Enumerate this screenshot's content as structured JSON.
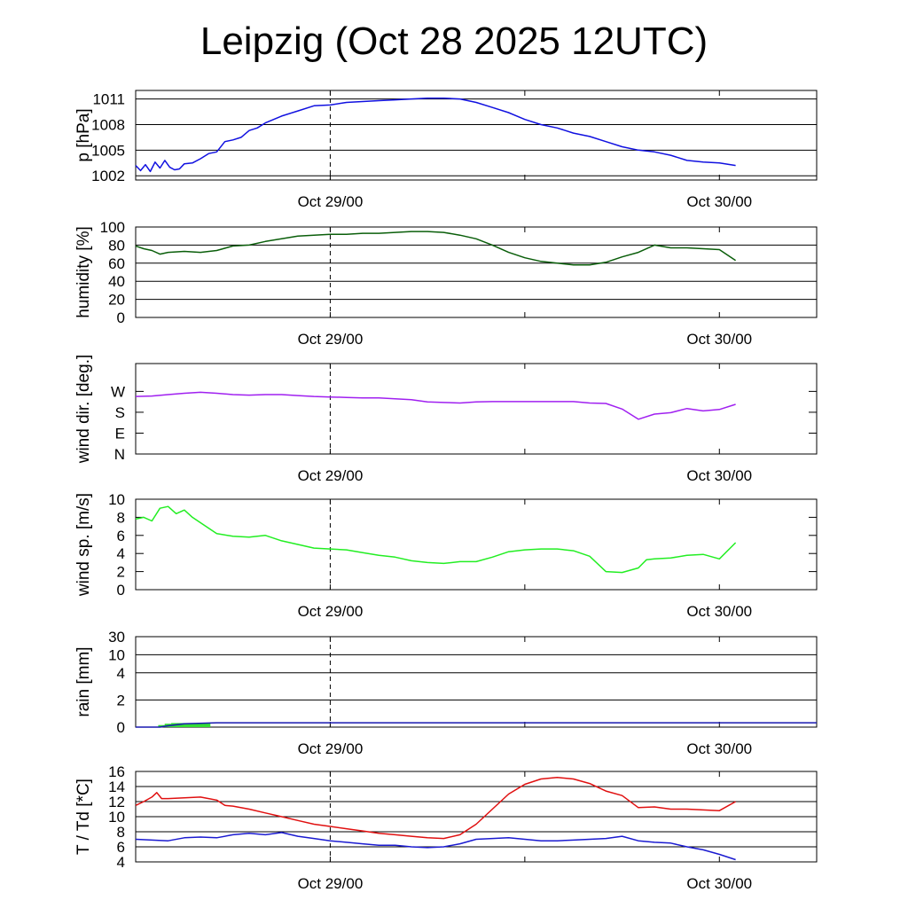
{
  "title": "Leipzig (Oct 28 2025 12UTC)",
  "colors": {
    "pressure": "#1010e0",
    "humidity": "#0a5e0a",
    "wind_dir": "#a020f0",
    "wind_speed": "#22ee22",
    "rain_bar": "#33dd33",
    "rain_line": "#1818b0",
    "temperature": "#e01010",
    "dewpoint": "#1a1ad0",
    "grid": "#000000"
  },
  "chart_data": [
    {
      "type": "line",
      "id": "pressure",
      "ylabel": "p [hPa]",
      "x_range": [
        0,
        42
      ],
      "x_ticks": [
        12,
        36
      ],
      "x_tick_labels": [
        "Oct 29/00",
        "Oct 30/00"
      ],
      "ylim": [
        1001.5,
        1012
      ],
      "yticks": [
        1002,
        1005,
        1008,
        1011
      ],
      "ytick_labels": [
        "1002",
        "1005",
        "1008",
        "1011"
      ],
      "grid": true,
      "series": [
        {
          "name": "pressure",
          "color": "#1010e0",
          "x": [
            0,
            0.3,
            0.6,
            0.9,
            1.2,
            1.5,
            1.8,
            2.1,
            2.4,
            2.7,
            3.0,
            3.5,
            4,
            4.5,
            5,
            5.5,
            6,
            6.5,
            7,
            7.5,
            8,
            9,
            10,
            11,
            12,
            13,
            14,
            15,
            16,
            17,
            18,
            19,
            20,
            21,
            22,
            23,
            24,
            25,
            26,
            27,
            28,
            29,
            30,
            31,
            32,
            33,
            34,
            35,
            36,
            37
          ],
          "y": [
            1003.2,
            1002.6,
            1003.3,
            1002.5,
            1003.6,
            1002.9,
            1003.8,
            1003.0,
            1002.7,
            1002.8,
            1003.4,
            1003.5,
            1004.0,
            1004.6,
            1004.8,
            1006.0,
            1006.2,
            1006.5,
            1007.3,
            1007.6,
            1008.2,
            1009.0,
            1009.6,
            1010.2,
            1010.3,
            1010.6,
            1010.7,
            1010.8,
            1010.9,
            1011.0,
            1011.1,
            1011.1,
            1011.0,
            1010.6,
            1010.0,
            1009.4,
            1008.6,
            1008.0,
            1007.6,
            1007.0,
            1006.6,
            1006.0,
            1005.4,
            1005.0,
            1004.8,
            1004.4,
            1003.8,
            1003.6,
            1003.5,
            1003.2
          ]
        }
      ]
    },
    {
      "type": "line",
      "id": "humidity",
      "ylabel": "humidity [%]",
      "x_range": [
        0,
        42
      ],
      "x_ticks": [
        12,
        36
      ],
      "x_tick_labels": [
        "Oct 29/00",
        "Oct 30/00"
      ],
      "ylim": [
        0,
        100
      ],
      "yticks": [
        0,
        20,
        40,
        60,
        80,
        100
      ],
      "ytick_labels": [
        "0",
        "20",
        "40",
        "60",
        "80",
        "100"
      ],
      "grid": true,
      "series": [
        {
          "name": "humidity",
          "color": "#0a5e0a",
          "x": [
            0,
            0.5,
            1,
            1.5,
            2,
            3,
            4,
            5,
            6,
            7,
            8,
            9,
            10,
            11,
            12,
            13,
            14,
            15,
            16,
            17,
            18,
            19,
            20,
            21,
            22,
            23,
            24,
            25,
            26,
            27,
            28,
            29,
            30,
            31,
            32,
            33,
            34,
            35,
            36,
            37
          ],
          "y": [
            79,
            76,
            74,
            70,
            72,
            73,
            72,
            74,
            79,
            80,
            84,
            87,
            90,
            91,
            92,
            92,
            93,
            93,
            94,
            95,
            95,
            94,
            91,
            87,
            80,
            72,
            66,
            62,
            60,
            58,
            58,
            61,
            67,
            72,
            80,
            77,
            77,
            76,
            75,
            63
          ]
        }
      ]
    },
    {
      "type": "line",
      "id": "wind_direction",
      "ylabel": "wind dir. [deg.]",
      "x_range": [
        0,
        42
      ],
      "x_ticks": [
        12,
        36
      ],
      "x_tick_labels": [
        "Oct 29/00",
        "Oct 30/00"
      ],
      "ylim": [
        0,
        390
      ],
      "yticks": [
        0,
        90,
        180,
        270
      ],
      "ytick_labels": [
        "N",
        "E",
        "S",
        "W"
      ],
      "grid": false,
      "series": [
        {
          "name": "wind direction",
          "color": "#a020f0",
          "x": [
            0,
            1,
            2,
            3,
            4,
            5,
            6,
            7,
            8,
            9,
            10,
            11,
            12,
            13,
            14,
            15,
            16,
            17,
            18,
            19,
            20,
            21,
            22,
            23,
            24,
            25,
            26,
            27,
            28,
            29,
            30,
            31,
            32,
            33,
            34,
            35,
            36,
            37
          ],
          "y": [
            248,
            250,
            256,
            262,
            266,
            262,
            256,
            254,
            256,
            256,
            252,
            248,
            246,
            244,
            242,
            242,
            238,
            234,
            225,
            222,
            220,
            225,
            226,
            226,
            226,
            226,
            226,
            226,
            220,
            218,
            194,
            150,
            172,
            178,
            196,
            186,
            192,
            214
          ]
        }
      ]
    },
    {
      "type": "line",
      "id": "wind_speed",
      "ylabel": "wind sp. [m/s]",
      "x_range": [
        0,
        42
      ],
      "x_ticks": [
        12,
        36
      ],
      "x_tick_labels": [
        "Oct 29/00",
        "Oct 30/00"
      ],
      "ylim": [
        0,
        10
      ],
      "yticks": [
        0,
        2,
        4,
        6,
        8,
        10
      ],
      "ytick_labels": [
        "0",
        "2",
        "4",
        "6",
        "8",
        "10"
      ],
      "grid": false,
      "series": [
        {
          "name": "wind speed",
          "color": "#22ee22",
          "x": [
            0,
            0.5,
            1,
            1.5,
            2,
            2.5,
            3,
            3.5,
            4,
            5,
            6,
            7,
            8,
            9,
            10,
            11,
            12,
            13,
            14,
            15,
            16,
            17,
            18,
            19,
            20,
            21,
            22,
            23,
            24,
            25,
            26,
            27,
            28,
            29,
            30,
            31,
            31.5,
            32,
            33,
            34,
            35,
            36,
            37
          ],
          "y": [
            7.8,
            8.0,
            7.6,
            9.0,
            9.2,
            8.4,
            8.8,
            8.0,
            7.4,
            6.2,
            5.9,
            5.8,
            6.0,
            5.4,
            5.0,
            4.6,
            4.5,
            4.4,
            4.1,
            3.8,
            3.6,
            3.2,
            3.0,
            2.9,
            3.1,
            3.1,
            3.6,
            4.2,
            4.4,
            4.5,
            4.5,
            4.3,
            3.7,
            2.0,
            1.9,
            2.4,
            3.3,
            3.4,
            3.5,
            3.8,
            3.9,
            3.4,
            5.2
          ]
        }
      ]
    },
    {
      "type": "bar",
      "id": "rain",
      "ylabel": "rain [mm]",
      "x_range": [
        0,
        42
      ],
      "x_ticks": [
        12,
        36
      ],
      "x_tick_labels": [
        "Oct 29/00",
        "Oct 30/00"
      ],
      "ylim": [
        0,
        30
      ],
      "yticks": [
        0,
        2,
        4,
        10,
        30
      ],
      "ytick_labels": [
        "0",
        "2",
        "4",
        "10",
        "30"
      ],
      "grid": true,
      "bars": {
        "name": "rain",
        "color": "#33dd33",
        "x": [
          1.6,
          2.0,
          2.4,
          2.8,
          3.2,
          3.6,
          4.0,
          4.4
        ],
        "values": [
          0.15,
          0.25,
          0.3,
          0.3,
          0.3,
          0.3,
          0.3,
          0.3
        ]
      },
      "series": [
        {
          "name": "accumulated",
          "color": "#1818b0",
          "x": [
            0,
            1.5,
            2,
            3,
            5,
            42
          ],
          "y": [
            0,
            0,
            0.1,
            0.25,
            0.32,
            0.32
          ]
        }
      ]
    },
    {
      "type": "line",
      "id": "temperature",
      "ylabel": "T / Td [*C]",
      "x_range": [
        0,
        42
      ],
      "x_ticks": [
        12,
        36
      ],
      "x_tick_labels": [
        "Oct 29/00",
        "Oct 30/00"
      ],
      "ylim": [
        4,
        16
      ],
      "yticks": [
        4,
        6,
        8,
        10,
        12,
        14,
        16
      ],
      "ytick_labels": [
        "4",
        "6",
        "8",
        "10",
        "12",
        "14",
        "16"
      ],
      "grid": true,
      "series": [
        {
          "name": "T",
          "color": "#e01010",
          "x": [
            0,
            0.5,
            1,
            1.3,
            1.6,
            2,
            3,
            4,
            4.5,
            5,
            5.5,
            6,
            7,
            8,
            9,
            10,
            11,
            12,
            13,
            14,
            15,
            16,
            17,
            18,
            19,
            20,
            21,
            22,
            23,
            24,
            25,
            26,
            27,
            28,
            29,
            30,
            31,
            32,
            33,
            34,
            35,
            36,
            37
          ],
          "y": [
            11.5,
            12.0,
            12.6,
            13.2,
            12.4,
            12.4,
            12.5,
            12.6,
            12.4,
            12.2,
            11.5,
            11.4,
            11.0,
            10.5,
            10.0,
            9.5,
            9.0,
            8.7,
            8.4,
            8.1,
            7.8,
            7.6,
            7.4,
            7.2,
            7.1,
            7.6,
            9.0,
            11.0,
            13.0,
            14.3,
            15.0,
            15.2,
            15.0,
            14.4,
            13.4,
            12.8,
            11.2,
            11.3,
            11.0,
            11.0,
            10.9,
            10.8,
            12.0
          ]
        },
        {
          "name": "Td",
          "color": "#1a1ad0",
          "x": [
            0,
            1,
            2,
            3,
            4,
            5,
            6,
            7,
            8,
            9,
            10,
            11,
            12,
            13,
            14,
            15,
            16,
            17,
            18,
            19,
            20,
            21,
            22,
            23,
            24,
            25,
            26,
            27,
            28,
            29,
            30,
            31,
            32,
            33,
            34,
            35,
            36,
            37
          ],
          "y": [
            7.0,
            6.9,
            6.8,
            7.2,
            7.3,
            7.2,
            7.6,
            7.8,
            7.6,
            7.9,
            7.4,
            7.1,
            6.8,
            6.6,
            6.4,
            6.2,
            6.2,
            6.0,
            5.9,
            6.0,
            6.4,
            7.0,
            7.1,
            7.2,
            7.0,
            6.8,
            6.8,
            6.9,
            7.0,
            7.1,
            7.4,
            6.8,
            6.6,
            6.5,
            6.0,
            5.6,
            5.0,
            4.3
          ]
        }
      ]
    }
  ]
}
